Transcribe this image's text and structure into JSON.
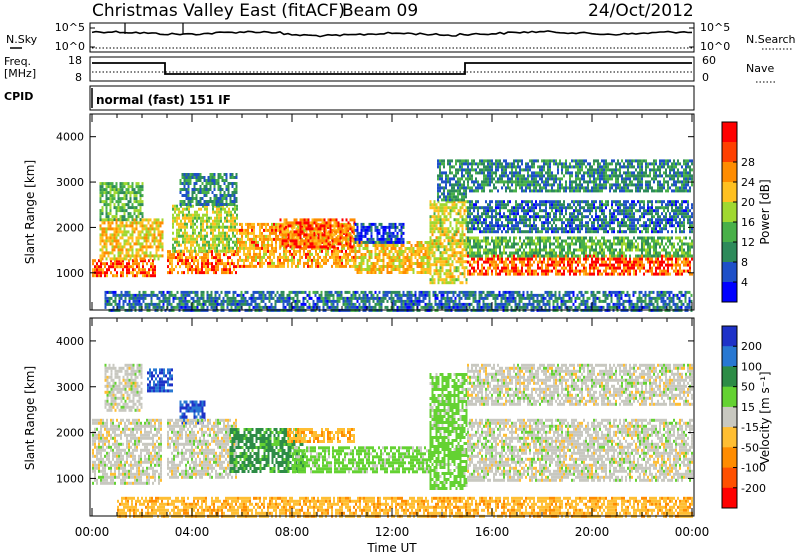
{
  "header": {
    "station": "Christmas Valley East (fitACF)",
    "beam": "Beam 09",
    "date": "24/Oct/2012"
  },
  "top_panels": {
    "nsky_label": "N.Sky",
    "nsearch_label": "N.Search",
    "nsky_ticks": [
      "10^5",
      "10^0"
    ],
    "nsearch_ticks": [
      "10^5",
      "10^0"
    ],
    "freq_label_1": "Freq.",
    "freq_label_2": "[MHz]",
    "freq_ticks": [
      "18",
      "8"
    ],
    "nave_label": "Nave",
    "nave_ticks": [
      "60",
      "0"
    ],
    "cpid_label": "CPID",
    "cpid_value": "normal (fast) 151 IF"
  },
  "chart_data": [
    {
      "type": "heatmap",
      "title": "",
      "xlabel": "",
      "ylabel": "Slant Range [km]",
      "xlim": [
        "00:00",
        "24:00"
      ],
      "ylim": [
        180,
        4500
      ],
      "x_ticks": [
        "00:00",
        "04:00",
        "08:00",
        "12:00",
        "16:00",
        "20:00",
        "00:00"
      ],
      "y_ticks": [
        1000,
        2000,
        3000,
        4000
      ],
      "colorbar": {
        "label": "Power [dB]",
        "ticks": [
          4,
          8,
          12,
          16,
          20,
          24,
          28
        ],
        "colors": [
          "#0000ff",
          "#1e50c8",
          "#2d8a5a",
          "#48b048",
          "#a0d830",
          "#ffc020",
          "#ff8c00",
          "#ff4000",
          "#ff0000"
        ]
      },
      "regions": [
        {
          "t0": 0.0,
          "t1": 2.5,
          "r0": 950,
          "r1": 1300,
          "value": 28
        },
        {
          "t0": 0.3,
          "t1": 2.8,
          "r0": 1300,
          "r1": 2200,
          "value": 22
        },
        {
          "t0": 0.3,
          "t1": 2.0,
          "r0": 2200,
          "r1": 3000,
          "value": 14
        },
        {
          "t0": 3.0,
          "t1": 5.8,
          "r0": 1000,
          "r1": 1500,
          "value": 26
        },
        {
          "t0": 3.2,
          "t1": 5.8,
          "r0": 1500,
          "r1": 2500,
          "value": 18
        },
        {
          "t0": 3.5,
          "t1": 5.8,
          "r0": 2500,
          "r1": 3200,
          "value": 10
        },
        {
          "t0": 5.8,
          "t1": 10.5,
          "r0": 1150,
          "r1": 2100,
          "value": 24
        },
        {
          "t0": 7.5,
          "t1": 10.5,
          "r0": 1600,
          "r1": 2200,
          "value": 27
        },
        {
          "t0": 10.5,
          "t1": 13.5,
          "r0": 1000,
          "r1": 1700,
          "value": 22
        },
        {
          "t0": 10.5,
          "t1": 12.5,
          "r0": 1700,
          "r1": 2100,
          "value": 6
        },
        {
          "t0": 13.5,
          "t1": 15.0,
          "r0": 800,
          "r1": 2600,
          "value": 20
        },
        {
          "t0": 13.8,
          "t1": 15.0,
          "r0": 2600,
          "r1": 3500,
          "value": 10
        },
        {
          "t0": 15.0,
          "t1": 24.0,
          "r0": 950,
          "r1": 1400,
          "value": 28
        },
        {
          "t0": 15.0,
          "t1": 24.0,
          "r0": 1400,
          "r1": 1800,
          "value": 14
        },
        {
          "t0": 15.0,
          "t1": 24.0,
          "r0": 1900,
          "r1": 2600,
          "value": 8
        },
        {
          "t0": 15.0,
          "t1": 24.0,
          "r0": 2800,
          "r1": 3500,
          "value": 10
        },
        {
          "t0": 0.5,
          "t1": 24.0,
          "r0": 200,
          "r1": 600,
          "value": 8
        }
      ]
    },
    {
      "type": "heatmap",
      "title": "",
      "xlabel": "Time UT",
      "ylabel": "Slant Range [km]",
      "xlim": [
        "00:00",
        "24:00"
      ],
      "ylim": [
        180,
        4500
      ],
      "x_ticks": [
        "00:00",
        "04:00",
        "08:00",
        "12:00",
        "16:00",
        "20:00",
        "00:00"
      ],
      "y_ticks": [
        1000,
        2000,
        3000,
        4000
      ],
      "colorbar": {
        "label": "Velocity [m s^-1]",
        "ticks": [
          200,
          100,
          50,
          15,
          -15,
          -50,
          -100,
          -200
        ],
        "colors": [
          "#1e32c8",
          "#2878d2",
          "#2d8c46",
          "#64d232",
          "#c8c8c0",
          "#ffbe32",
          "#ff8c00",
          "#ff5000",
          "#ff0000"
        ]
      },
      "regions": [
        {
          "t0": 0.0,
          "t1": 2.8,
          "r0": 900,
          "r1": 2300,
          "value": 0
        },
        {
          "t0": 0.5,
          "t1": 2.0,
          "r0": 2500,
          "r1": 3500,
          "value": 0
        },
        {
          "t0": 2.2,
          "t1": 3.2,
          "r0": 2900,
          "r1": 3400,
          "value": 200
        },
        {
          "t0": 3.5,
          "t1": 4.5,
          "r0": 2200,
          "r1": 2700,
          "value": 200
        },
        {
          "t0": 3.0,
          "t1": 5.8,
          "r0": 1000,
          "r1": 2300,
          "value": 0
        },
        {
          "t0": 5.5,
          "t1": 8.5,
          "r0": 1150,
          "r1": 2100,
          "value": 60
        },
        {
          "t0": 8.0,
          "t1": 13.5,
          "r0": 1150,
          "r1": 1700,
          "value": 30
        },
        {
          "t0": 7.8,
          "t1": 10.5,
          "r0": 1800,
          "r1": 2100,
          "value": -40
        },
        {
          "t0": 13.5,
          "t1": 15.0,
          "r0": 800,
          "r1": 3300,
          "value": 30
        },
        {
          "t0": 15.0,
          "t1": 24.0,
          "r0": 950,
          "r1": 2300,
          "value": 0
        },
        {
          "t0": 15.0,
          "t1": 24.0,
          "r0": 2600,
          "r1": 3500,
          "value": 0
        },
        {
          "t0": 1.0,
          "t1": 24.0,
          "r0": 200,
          "r1": 600,
          "value": -40
        }
      ]
    }
  ]
}
